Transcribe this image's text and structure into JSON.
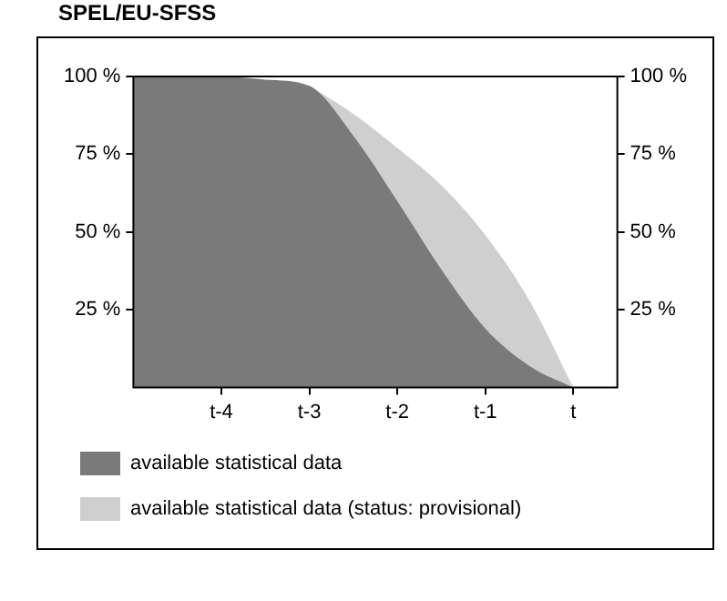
{
  "chart_data": {
    "type": "area",
    "title": "SPEL/EU-SFSS",
    "categories": [
      null,
      null,
      "t-4",
      null,
      "t-3",
      null,
      "t-2",
      null,
      "t-1",
      null,
      "t",
      null
    ],
    "ylim": [
      0,
      100
    ],
    "yticks": [
      {
        "value": 25,
        "label": "25 %"
      },
      {
        "value": 50,
        "label": "50 %"
      },
      {
        "value": 75,
        "label": "75 %"
      },
      {
        "value": 100,
        "label": "100 %"
      }
    ],
    "y2lim": [
      0,
      100
    ],
    "y2ticks": [
      {
        "value": 25,
        "label": "25 %"
      },
      {
        "value": 50,
        "label": "50 %"
      },
      {
        "value": 75,
        "label": "75 %"
      },
      {
        "value": 100,
        "label": "100 %"
      }
    ],
    "series": [
      {
        "name": "available statistical data",
        "color": "#7a7a7a",
        "values": [
          100,
          100,
          100,
          99,
          97,
          81,
          60,
          38,
          19,
          7,
          0,
          null
        ]
      },
      {
        "name": "available statistical data (status: provisional)",
        "color": "#cfcfcf",
        "values": [
          null,
          null,
          null,
          null,
          0,
          7,
          17,
          27,
          30,
          21,
          0,
          null
        ]
      }
    ],
    "stacked": true,
    "grid": false,
    "legend": "bottom",
    "marker": "none"
  }
}
